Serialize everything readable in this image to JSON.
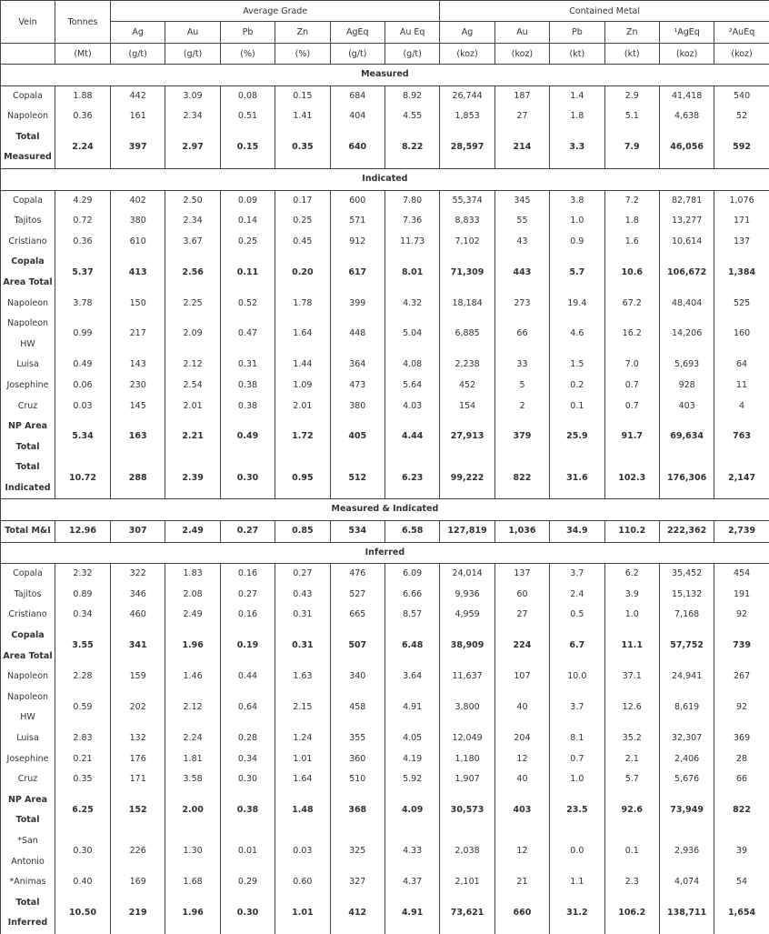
{
  "header": {
    "vein": "Vein",
    "tonnes": "Tonnes",
    "groups": [
      "Average Grade",
      "Contained Metal"
    ],
    "columns": [
      "Ag",
      "Au",
      "Pb",
      "Zn",
      "AgEq",
      "Au Eq",
      "Ag",
      "Au",
      "Pb",
      "Zn",
      "¹AgEq",
      "²AuEq"
    ],
    "units": [
      "(Mt)",
      "(g/t)",
      "(g/t)",
      "(%)",
      "(%)",
      "(g/t)",
      "(g/t)",
      "(koz)",
      "(koz)",
      "(kt)",
      "(kt)",
      "(koz)",
      "(koz)"
    ]
  },
  "sections": [
    {
      "title": "Measured",
      "rows": [
        {
          "cells": [
            "Copala",
            "1.88",
            "442",
            "3.09",
            "0.08",
            "0.15",
            "684",
            "8.92",
            "26,744",
            "187",
            "1.4",
            "2.9",
            "41,418",
            "540"
          ],
          "bold": false
        },
        {
          "cells": [
            "Napoleon",
            "0.36",
            "161",
            "2.34",
            "0.51",
            "1.41",
            "404",
            "4.55",
            "1,853",
            "27",
            "1.8",
            "5.1",
            "4,638",
            "52"
          ],
          "bold": false
        },
        {
          "cells": [
            "Total Measured",
            "2.24",
            "397",
            "2.97",
            "0.15",
            "0.35",
            "640",
            "8.22",
            "28,597",
            "214",
            "3.3",
            "7.9",
            "46,056",
            "592"
          ],
          "bold": true
        }
      ]
    },
    {
      "title": "Indicated",
      "rows": [
        {
          "cells": [
            "Copala",
            "4.29",
            "402",
            "2.50",
            "0.09",
            "0.17",
            "600",
            "7.80",
            "55,374",
            "345",
            "3.8",
            "7.2",
            "82,781",
            "1,076"
          ],
          "bold": false
        },
        {
          "cells": [
            "Tajitos",
            "0.72",
            "380",
            "2.34",
            "0.14",
            "0.25",
            "571",
            "7.36",
            "8,833",
            "55",
            "1.0",
            "1.8",
            "13,277",
            "171"
          ],
          "bold": false
        },
        {
          "cells": [
            "Cristiano",
            "0.36",
            "610",
            "3.67",
            "0.25",
            "0.45",
            "912",
            "11.73",
            "7,102",
            "43",
            "0.9",
            "1.6",
            "10,614",
            "137"
          ],
          "bold": false
        },
        {
          "cells": [
            "Copala Area Total",
            "5.37",
            "413",
            "2.56",
            "0.11",
            "0.20",
            "617",
            "8.01",
            "71,309",
            "443",
            "5.7",
            "10.6",
            "106,672",
            "1,384"
          ],
          "bold": true
        },
        {
          "cells": [
            "Napoleon",
            "3.78",
            "150",
            "2.25",
            "0.52",
            "1.78",
            "399",
            "4.32",
            "18,184",
            "273",
            "19.4",
            "67.2",
            "48,404",
            "525"
          ],
          "bold": false
        },
        {
          "cells": [
            "Napoleon HW",
            "0.99",
            "217",
            "2.09",
            "0.47",
            "1.64",
            "448",
            "5.04",
            "6,885",
            "66",
            "4.6",
            "16.2",
            "14,206",
            "160"
          ],
          "bold": false
        },
        {
          "cells": [
            "Luisa",
            "0.49",
            "143",
            "2.12",
            "0.31",
            "1.44",
            "364",
            "4.08",
            "2,238",
            "33",
            "1.5",
            "7.0",
            "5,693",
            "64"
          ],
          "bold": false
        },
        {
          "cells": [
            "Josephine",
            "0.06",
            "230",
            "2.54",
            "0.38",
            "1.09",
            "473",
            "5.64",
            "452",
            "5",
            "0.2",
            "0.7",
            "928",
            "11"
          ],
          "bold": false
        },
        {
          "cells": [
            "Cruz",
            "0.03",
            "145",
            "2.01",
            "0.38",
            "2.01",
            "380",
            "4.03",
            "154",
            "2",
            "0.1",
            "0.7",
            "403",
            "4"
          ],
          "bold": false
        },
        {
          "cells": [
            "NP Area Total",
            "5.34",
            "163",
            "2.21",
            "0.49",
            "1.72",
            "405",
            "4.44",
            "27,913",
            "379",
            "25.9",
            "91.7",
            "69,634",
            "763"
          ],
          "bold": true
        },
        {
          "cells": [
            "Total Indicated",
            "10.72",
            "288",
            "2.39",
            "0.30",
            "0.95",
            "512",
            "6.23",
            "99,222",
            "822",
            "31.6",
            "102.3",
            "176,306",
            "2,147"
          ],
          "bold": true
        }
      ]
    },
    {
      "title": "Measured & Indicated",
      "rows": [
        {
          "cells": [
            "Total M&I",
            "12.96",
            "307",
            "2.49",
            "0.27",
            "0.85",
            "534",
            "6.58",
            "127,819",
            "1,036",
            "34.9",
            "110.2",
            "222,362",
            "2,739"
          ],
          "bold": true
        }
      ]
    },
    {
      "title": "Inferred",
      "rows": [
        {
          "cells": [
            "Copala",
            "2.32",
            "322",
            "1.83",
            "0.16",
            "0.27",
            "476",
            "6.09",
            "24,014",
            "137",
            "3.7",
            "6.2",
            "35,452",
            "454"
          ],
          "bold": false
        },
        {
          "cells": [
            "Tajitos",
            "0.89",
            "346",
            "2.08",
            "0.27",
            "0.43",
            "527",
            "6.66",
            "9,936",
            "60",
            "2.4",
            "3.9",
            "15,132",
            "191"
          ],
          "bold": false
        },
        {
          "cells": [
            "Cristiano",
            "0.34",
            "460",
            "2.49",
            "0.16",
            "0.31",
            "665",
            "8.57",
            "4,959",
            "27",
            "0.5",
            "1.0",
            "7,168",
            "92"
          ],
          "bold": false
        },
        {
          "cells": [
            "Copala Area Total",
            "3.55",
            "341",
            "1.96",
            "0.19",
            "0.31",
            "507",
            "6.48",
            "38,909",
            "224",
            "6.7",
            "11.1",
            "57,752",
            "739"
          ],
          "bold": true
        },
        {
          "cells": [
            "Napoleon",
            "2.28",
            "159",
            "1.46",
            "0.44",
            "1.63",
            "340",
            "3.64",
            "11,637",
            "107",
            "10.0",
            "37.1",
            "24,941",
            "267"
          ],
          "bold": false
        },
        {
          "cells": [
            "Napoleon HW",
            "0.59",
            "202",
            "2.12",
            "0.64",
            "2.15",
            "458",
            "4.91",
            "3,800",
            "40",
            "3.7",
            "12.6",
            "8,619",
            "92"
          ],
          "bold": false
        },
        {
          "cells": [
            "Luisa",
            "2.83",
            "132",
            "2.24",
            "0.28",
            "1.24",
            "355",
            "4.05",
            "12,049",
            "204",
            "8.1",
            "35.2",
            "32,307",
            "369"
          ],
          "bold": false
        },
        {
          "cells": [
            "Josephine",
            "0.21",
            "176",
            "1.81",
            "0.34",
            "1.01",
            "360",
            "4.19",
            "1,180",
            "12",
            "0.7",
            "2.1",
            "2,406",
            "28"
          ],
          "bold": false
        },
        {
          "cells": [
            "Cruz",
            "0.35",
            "171",
            "3.58",
            "0.30",
            "1.64",
            "510",
            "5.92",
            "1,907",
            "40",
            "1.0",
            "5.7",
            "5,676",
            "66"
          ],
          "bold": false
        },
        {
          "cells": [
            "NP Area Total",
            "6.25",
            "152",
            "2.00",
            "0.38",
            "1.48",
            "368",
            "4.09",
            "30,573",
            "403",
            "23.5",
            "92.6",
            "73,949",
            "822"
          ],
          "bold": true
        },
        {
          "cells": [
            "*San Antonio",
            "0.30",
            "226",
            "1.30",
            "0.01",
            "0.03",
            "325",
            "4.33",
            "2,038",
            "12",
            "0.0",
            "0.1",
            "2,936",
            "39"
          ],
          "bold": false
        },
        {
          "cells": [
            "*Animas",
            "0.40",
            "169",
            "1.68",
            "0.29",
            "0.60",
            "327",
            "4.37",
            "2,101",
            "21",
            "1.1",
            "2.3",
            "4,074",
            "54"
          ],
          "bold": false
        },
        {
          "cells": [
            "Total Inferred",
            "10.50",
            "219",
            "1.96",
            "0.30",
            "1.01",
            "412",
            "4.91",
            "73,621",
            "660",
            "31.2",
            "106.2",
            "138,711",
            "1,654"
          ],
          "bold": true
        }
      ]
    }
  ]
}
